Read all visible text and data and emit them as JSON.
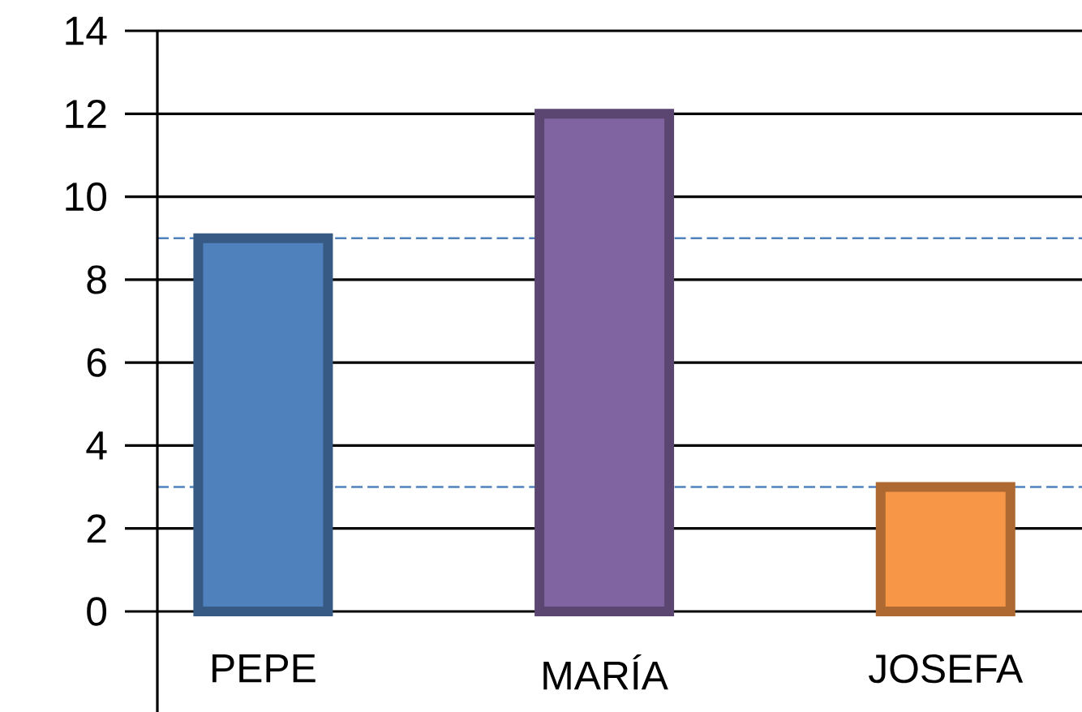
{
  "chart_data": {
    "type": "bar",
    "categories": [
      "PEPE",
      "MARÍA",
      "JOSEFA"
    ],
    "values": [
      9,
      12,
      3
    ],
    "colors": [
      "#4f81bd",
      "#8064a2",
      "#f79646"
    ],
    "ylim": [
      0,
      14
    ],
    "yticks": [
      0,
      2,
      4,
      6,
      8,
      10,
      12,
      14
    ],
    "grid": "y",
    "ref_lines": [
      {
        "axis": "y",
        "value": 9,
        "color": "#4f81bd",
        "line_style": "dashed"
      },
      {
        "axis": "y",
        "value": 3,
        "color": "#4f81bd",
        "line_style": "dashed"
      }
    ]
  }
}
